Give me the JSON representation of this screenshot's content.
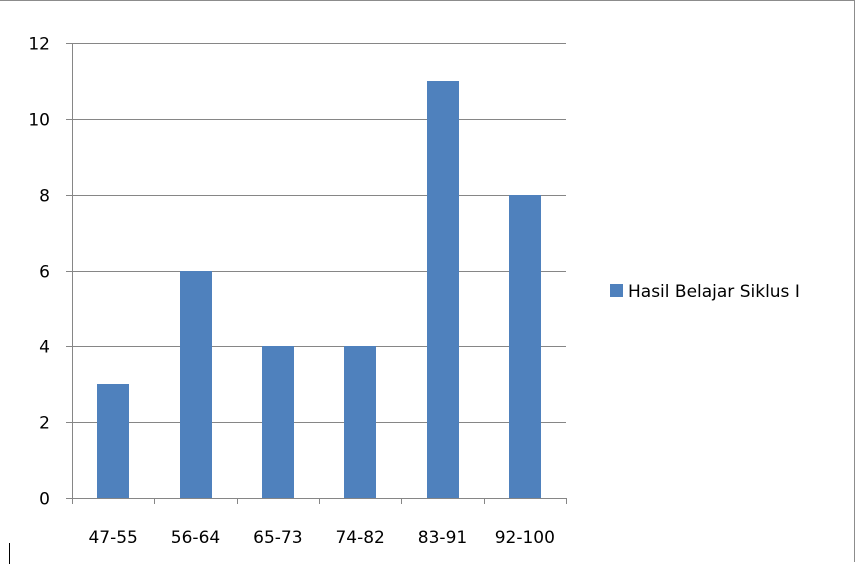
{
  "chart_data": {
    "type": "bar",
    "categories": [
      "47-55",
      "56-64",
      "65-73",
      "74-82",
      "83-91",
      "92-100"
    ],
    "series": [
      {
        "name": "Hasil Belajar Siklus I",
        "values": [
          3,
          6,
          4,
          4,
          11,
          8
        ]
      }
    ],
    "ylim": [
      0,
      12
    ],
    "yticks": [
      0,
      2,
      4,
      6,
      8,
      10,
      12
    ],
    "grid": true,
    "legend_position": "right",
    "colors": {
      "bar": "#4f81bd",
      "grid": "#868686",
      "axis": "#868686"
    }
  }
}
